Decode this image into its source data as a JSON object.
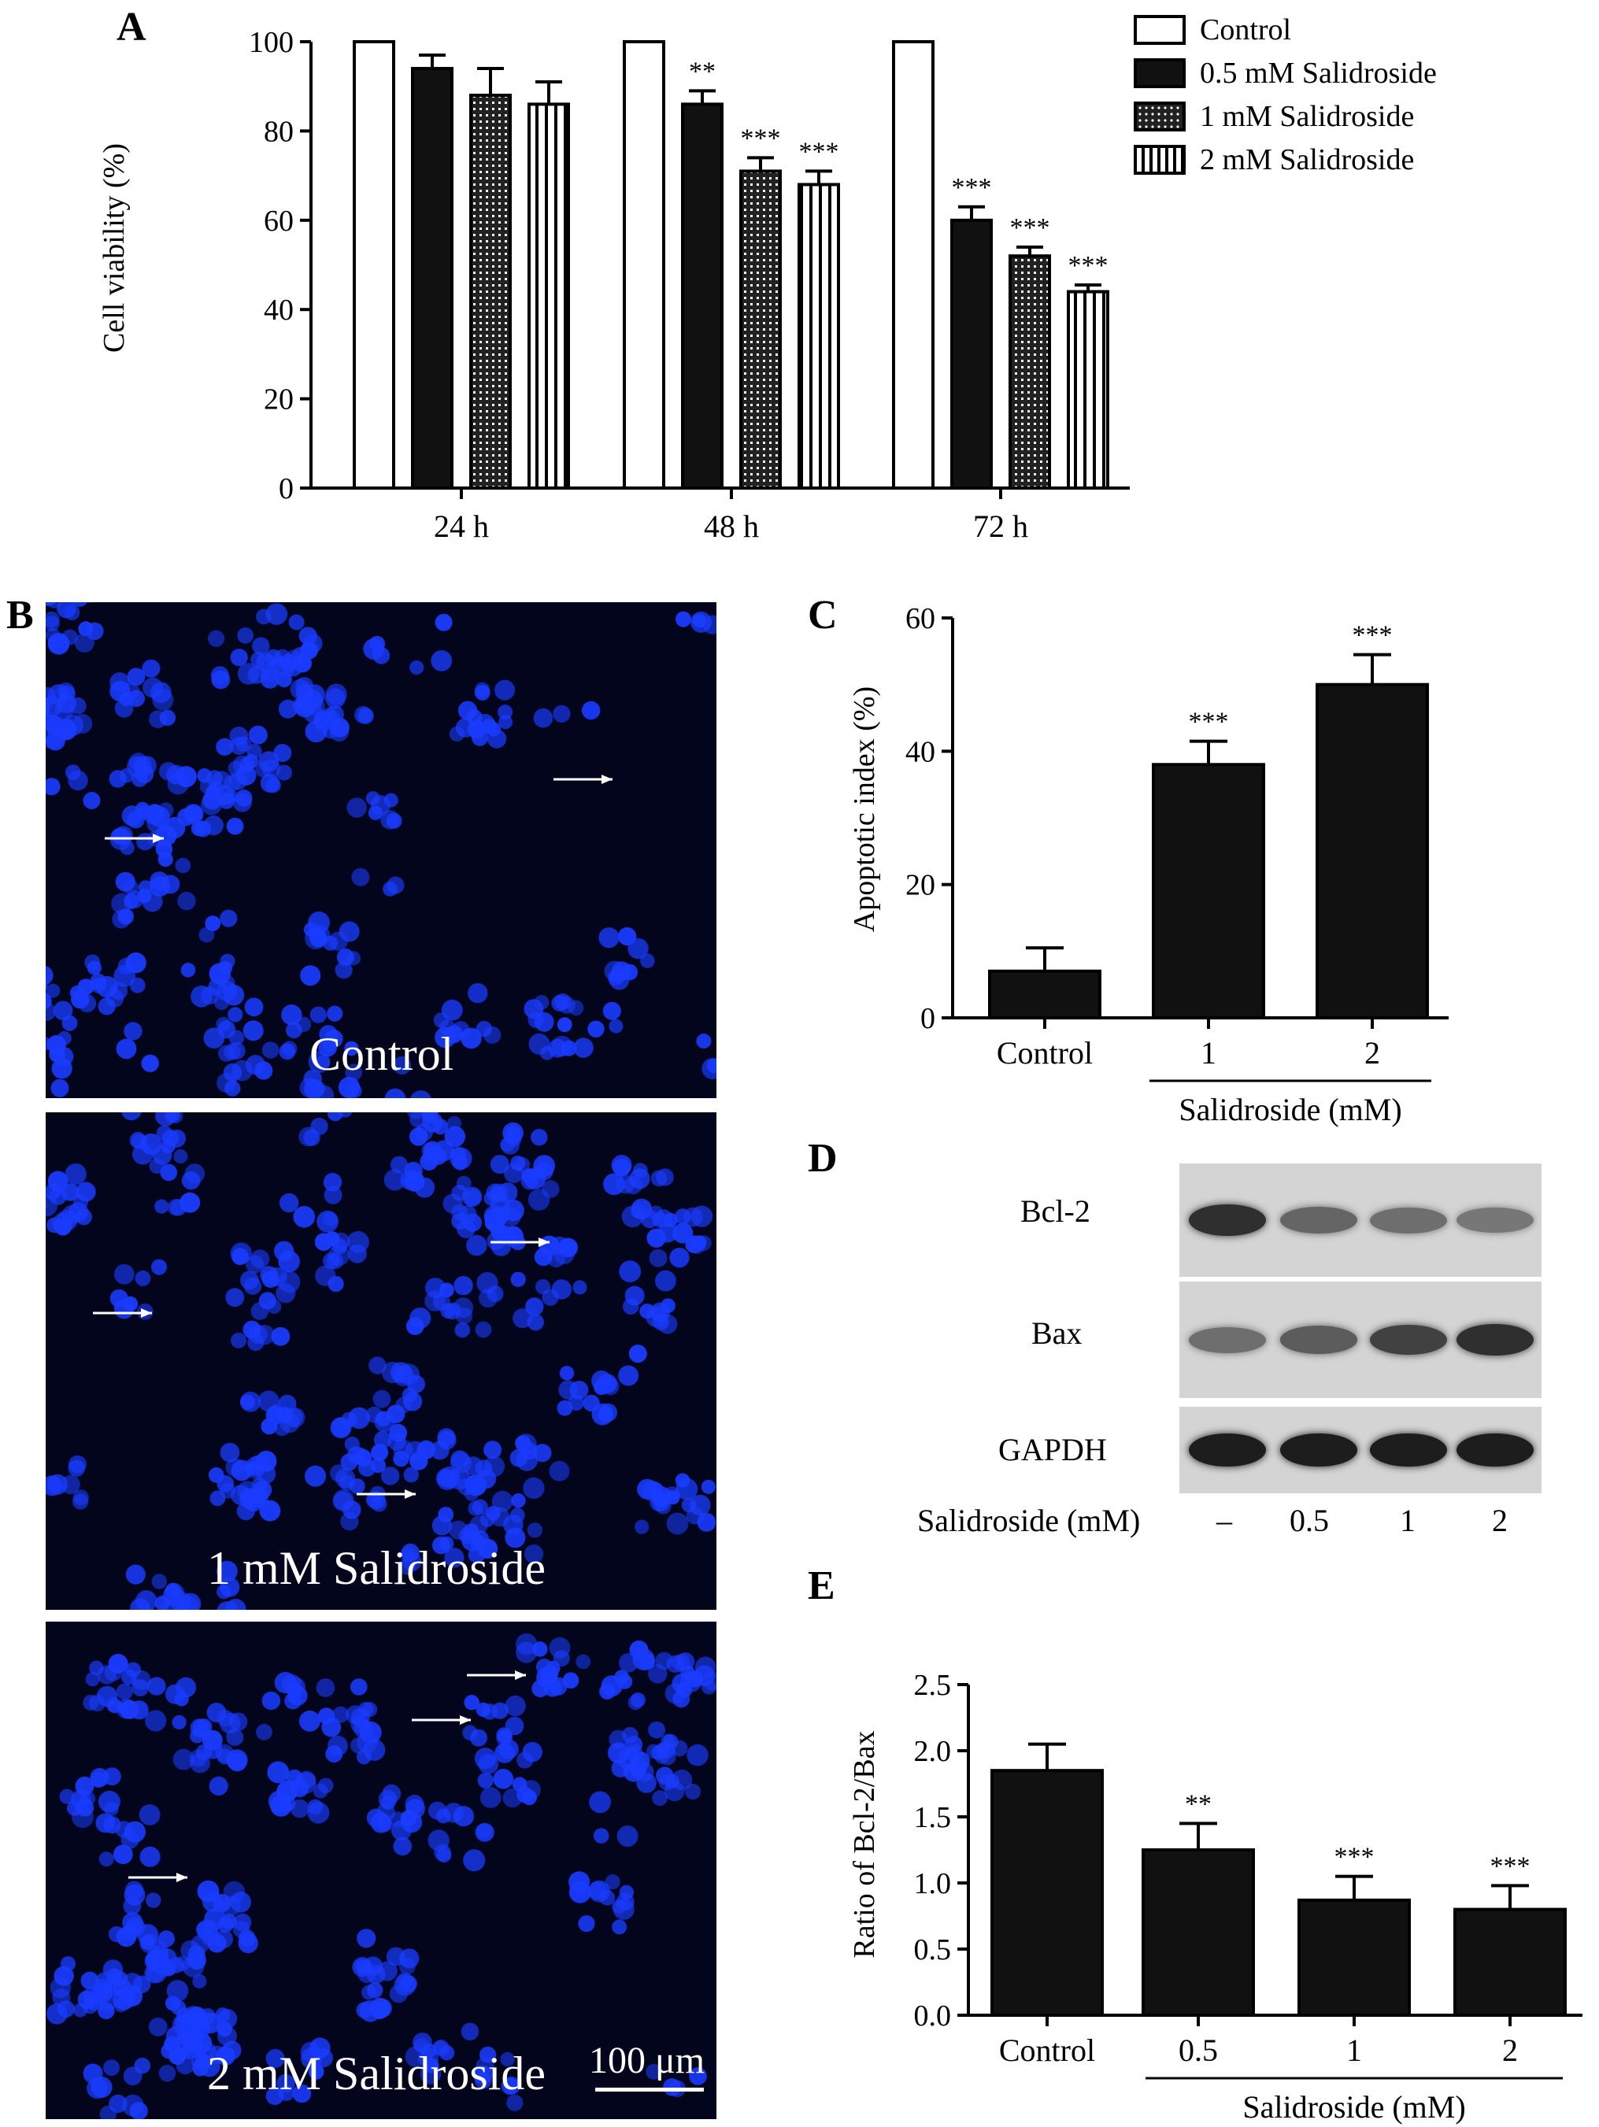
{
  "panels": {
    "A": "A",
    "B": "B",
    "C": "C",
    "D": "D",
    "E": "E"
  },
  "colors": {
    "bar_black": "#111111",
    "micro_bg": "#03051c",
    "nuclei": "#1a3cff"
  },
  "chart_data": [
    {
      "id": "A",
      "type": "bar",
      "ylabel": "Cell viability (%)",
      "ylim": [
        0,
        100
      ],
      "yticks": [
        0,
        20,
        40,
        60,
        80,
        100
      ],
      "categories": [
        "24 h",
        "48 h",
        "72 h"
      ],
      "series": [
        {
          "name": "Control",
          "values": [
            100,
            100,
            100
          ],
          "errors": [
            0,
            0,
            0
          ],
          "sig": [
            "",
            "",
            ""
          ],
          "pattern": "white"
        },
        {
          "name": "0.5 mM Salidroside",
          "values": [
            94,
            86,
            60
          ],
          "errors": [
            3,
            3,
            3
          ],
          "sig": [
            "",
            "**",
            "***"
          ],
          "pattern": "black"
        },
        {
          "name": "1 mM Salidroside",
          "values": [
            88,
            71,
            52
          ],
          "errors": [
            6,
            3,
            2
          ],
          "sig": [
            "",
            "***",
            "***"
          ],
          "pattern": "dots"
        },
        {
          "name": "2 mM Salidroside",
          "values": [
            86,
            68,
            44
          ],
          "errors": [
            5,
            3,
            1.5
          ],
          "sig": [
            "",
            "***",
            "***"
          ],
          "pattern": "vertical"
        }
      ],
      "legend": "top-right"
    },
    {
      "id": "C",
      "type": "bar",
      "ylabel": "Apoptotic index (%)",
      "ylim": [
        0,
        60
      ],
      "yticks": [
        0,
        20,
        40,
        60
      ],
      "categories": [
        "Control",
        "1",
        "2"
      ],
      "group_label": "Salidroside (mM)",
      "values": [
        7,
        38,
        50
      ],
      "errors": [
        3.5,
        3.5,
        4.5
      ],
      "sig": [
        "",
        "***",
        "***"
      ]
    },
    {
      "id": "E",
      "type": "bar",
      "ylabel": "Ratio of Bcl-2/Bax",
      "ylim": [
        0,
        2.5
      ],
      "yticks": [
        "0.0",
        "0.5",
        "1.0",
        "1.5",
        "2.0",
        "2.5"
      ],
      "categories": [
        "Control",
        "0.5",
        "1",
        "2"
      ],
      "group_label": "Salidroside (mM)",
      "values": [
        1.85,
        1.25,
        0.87,
        0.8
      ],
      "errors": [
        0.2,
        0.2,
        0.18,
        0.18
      ],
      "sig": [
        "",
        "**",
        "***",
        "***"
      ]
    }
  ],
  "microscopy": {
    "images": [
      {
        "label": "Control"
      },
      {
        "label": "1 mM Salidroside"
      },
      {
        "label": "2 mM Salidroside"
      }
    ],
    "scale_bar": "100 μm"
  },
  "blot": {
    "rows": [
      {
        "name": "Bcl-2",
        "intensity": [
          0.85,
          0.55,
          0.5,
          0.45
        ]
      },
      {
        "name": "Bax",
        "intensity": [
          0.5,
          0.6,
          0.75,
          0.85
        ]
      },
      {
        "name": "GAPDH",
        "intensity": [
          0.95,
          0.95,
          0.95,
          0.95
        ]
      }
    ],
    "axis_label": "Salidroside (mM)",
    "lanes": [
      "–",
      "0.5",
      "1",
      "2"
    ]
  }
}
